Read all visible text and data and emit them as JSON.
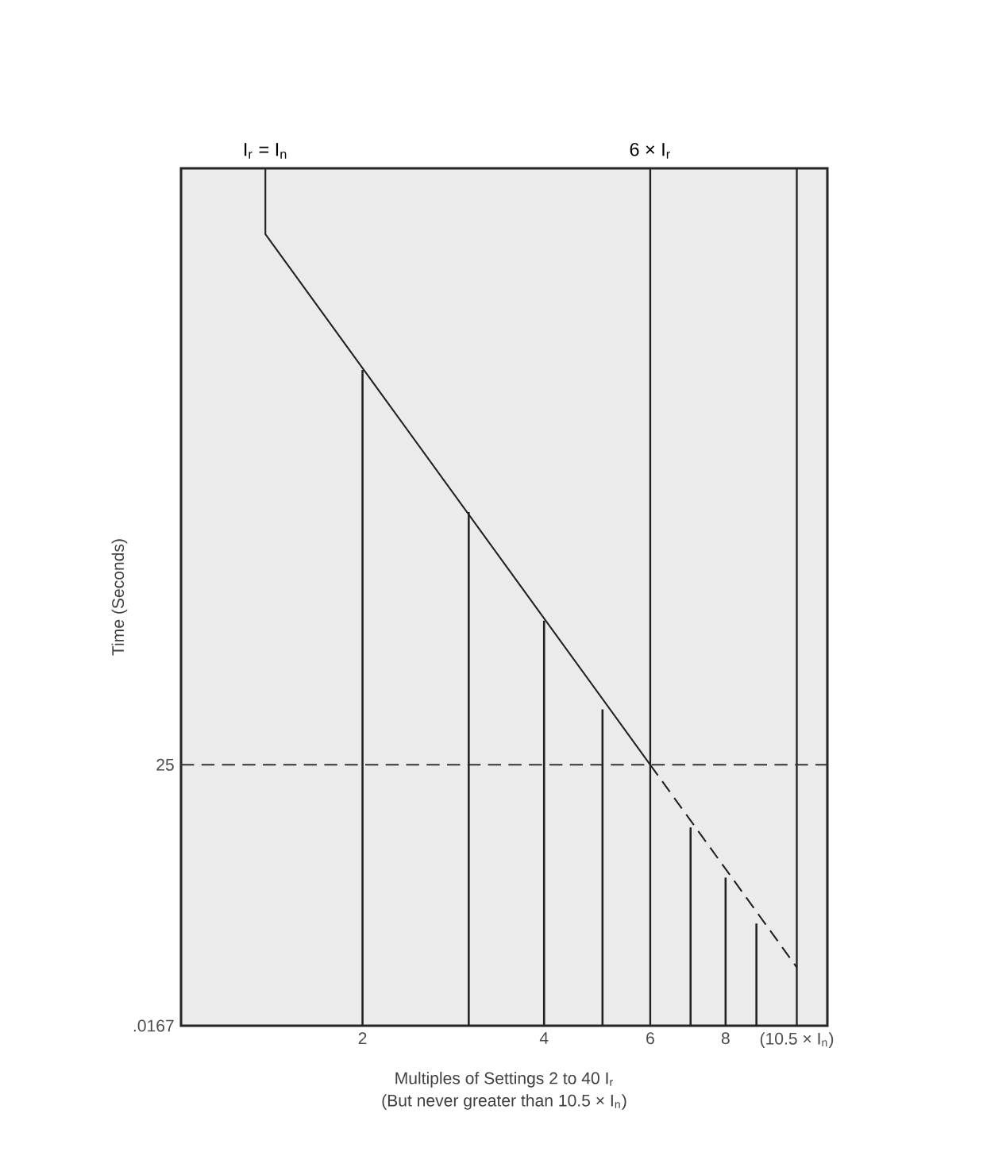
{
  "chart_data": {
    "type": "line",
    "ylabel": "Time (Seconds)",
    "xlabel": "Multiples of Settings 2 to 40 I$_{r}$",
    "annotations": [
      {
        "text": "I$_{r}$ = I$_{n}$",
        "x": 1.38,
        "y": 82.1
      },
      "(But never greater than 10.5 × I$_{n}$)"
    ],
    "log": "x",
    "xlim": [
      1,
      11.8
    ],
    "ylim": [
      0.0167,
      82.1
    ],
    "xticks": [
      2,
      4,
      6,
      8,
      {
        "value": 10.5,
        "label": "(10.5 × I$_{n}$)"
      }
    ],
    "yticks": [
      {
        "value": 0.0167,
        "label": ".0167"
      },
      25
    ],
    "marker": "none",
    "series": [
      {
        "color": "#222222",
        "line_style": "solid",
        "x": [
          1.38,
          1.38,
          6
        ],
        "values": [
          82.1,
          75.8,
          25
        ]
      },
      {
        "color": "#222222",
        "line_style": "dashed",
        "x": [
          6,
          10.5
        ],
        "values": [
          25,
          5.6
        ]
      },
      {
        "type": "bar",
        "color": "#222222",
        "x": [
          2,
          3,
          4,
          5,
          7,
          8,
          9
        ],
        "values": [
          62.8,
          49.2,
          38.8,
          30.3,
          19.0,
          14.2,
          9.8
        ]
      }
    ],
    "ref_lines": [
      {
        "axis": "x",
        "value": 6,
        "label": "6 × I$_{r}$",
        "color": "#222222",
        "line_style": "solid"
      },
      {
        "axis": "x",
        "value": 10.5,
        "label": null,
        "color": "#222222",
        "line_style": "solid"
      },
      {
        "axis": "y",
        "value": 25,
        "label": null,
        "color": "#333333",
        "line_style": "dashed"
      }
    ]
  }
}
